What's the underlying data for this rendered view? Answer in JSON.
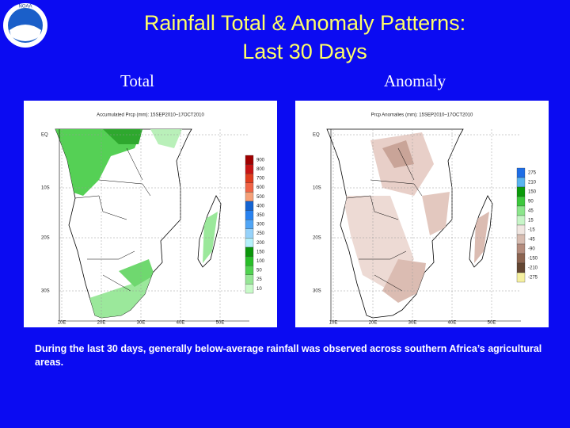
{
  "header": {
    "logo": "NOAA",
    "title_lines": [
      "Rainfall Total & Anomaly Patterns:",
      "Last 30 Days"
    ]
  },
  "panels": [
    {
      "label": "Total",
      "map_title": "Accumulated Prcp (mm): 15SEP2010–17OCT2010",
      "legend": [
        "900",
        "800",
        "700",
        "600",
        "500",
        "400",
        "350",
        "300",
        "250",
        "200",
        "150",
        "100",
        "50",
        "25",
        "10"
      ],
      "lat_labels": [
        "EQ",
        "10S",
        "20S",
        "30S"
      ],
      "lon_labels": [
        "10E",
        "20E",
        "30E",
        "40E",
        "50E"
      ]
    },
    {
      "label": "Anomaly",
      "map_title": "Prcp Anomalies (mm): 15SEP2010–17OCT2010",
      "legend": [
        "275",
        "210",
        "150",
        "90",
        "45",
        "15",
        "-15",
        "-45",
        "-90",
        "-150",
        "-210",
        "-275"
      ],
      "lat_labels": [
        "EQ",
        "10S",
        "20S",
        "30S"
      ],
      "lon_labels": [
        "10E",
        "20E",
        "30E",
        "40E",
        "50E"
      ]
    }
  ],
  "caption": "During the last 30 days, generally below-average rainfall was observed across southern Africa’s agricultural areas."
}
